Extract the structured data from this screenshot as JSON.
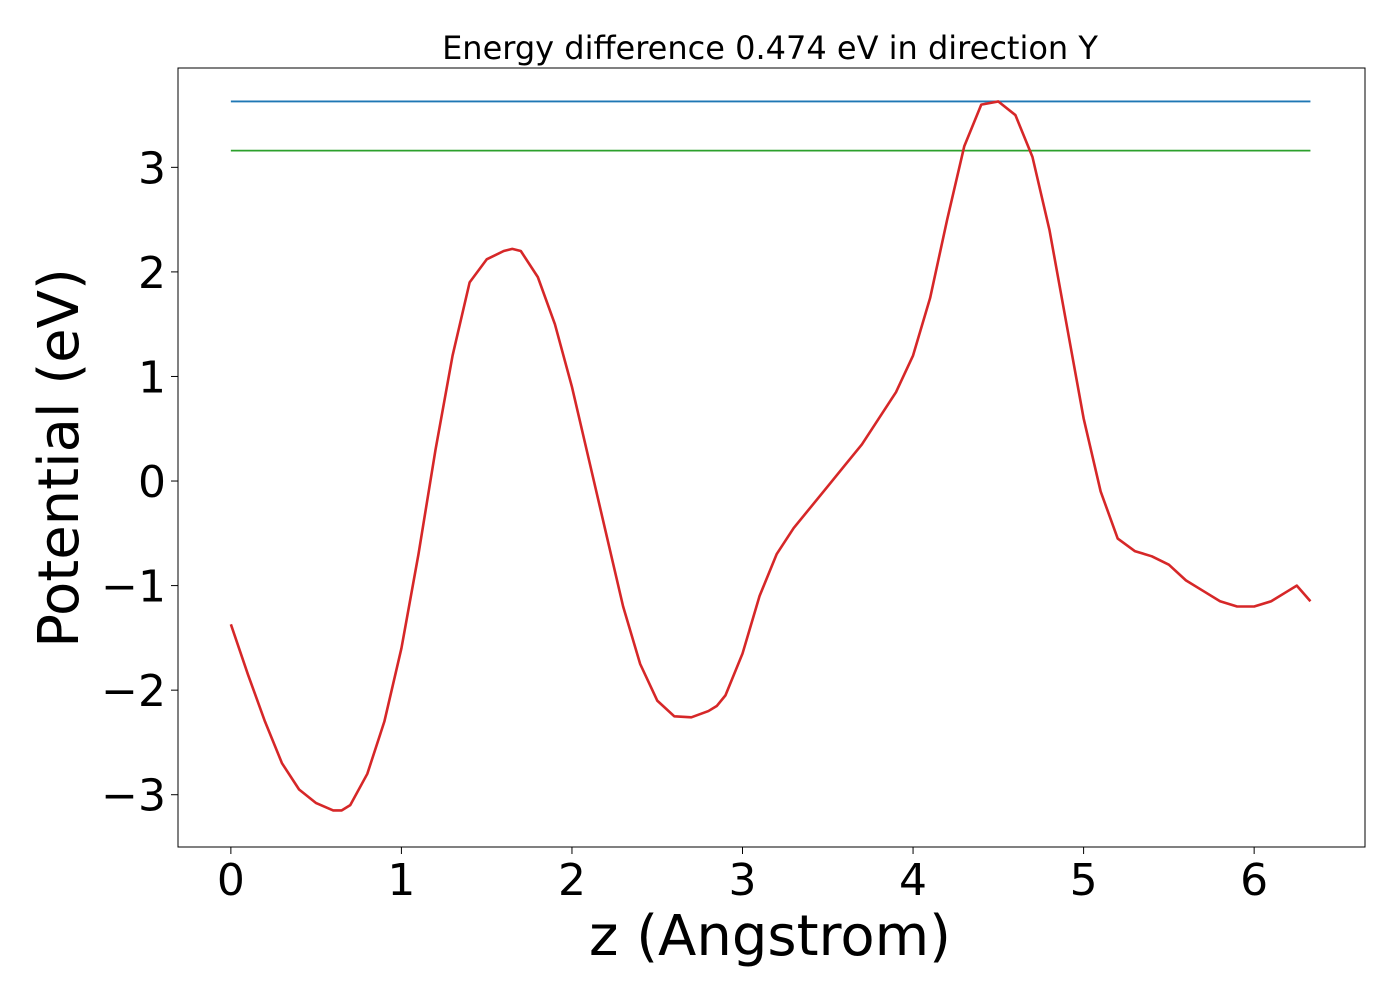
{
  "chart_data": {
    "type": "line",
    "title": "Energy difference 0.474 eV in direction Y",
    "xlabel": "z (Angstrom)",
    "ylabel": "Potential (eV)",
    "xlim": [
      -0.31,
      6.65
    ],
    "ylim": [
      -3.5,
      3.95
    ],
    "xticks": [
      0,
      1,
      2,
      3,
      4,
      5,
      6
    ],
    "xtick_labels": [
      "0",
      "1",
      "2",
      "3",
      "4",
      "5",
      "6"
    ],
    "yticks": [
      -3,
      -2,
      -1,
      0,
      1,
      2,
      3
    ],
    "ytick_labels": [
      "−3",
      "−2",
      "−1",
      "0",
      "1",
      "2",
      "3"
    ],
    "grid": false,
    "series": [
      {
        "color": "#d62728",
        "x": [
          0,
          0.1,
          0.2,
          0.3,
          0.4,
          0.5,
          0.6,
          0.65,
          0.7,
          0.8,
          0.9,
          1.0,
          1.1,
          1.2,
          1.3,
          1.4,
          1.5,
          1.6,
          1.65,
          1.7,
          1.8,
          1.9,
          2.0,
          2.1,
          2.2,
          2.3,
          2.4,
          2.5,
          2.6,
          2.7,
          2.8,
          2.85,
          2.9,
          3.0,
          3.1,
          3.2,
          3.3,
          3.4,
          3.5,
          3.6,
          3.7,
          3.8,
          3.9,
          4.0,
          4.1,
          4.2,
          4.3,
          4.4,
          4.5,
          4.6,
          4.7,
          4.8,
          4.9,
          5.0,
          5.1,
          5.2,
          5.3,
          5.4,
          5.5,
          5.6,
          5.7,
          5.8,
          5.9,
          6.0,
          6.1,
          6.2,
          6.25,
          6.33
        ],
        "y": [
          -1.37,
          -1.85,
          -2.3,
          -2.7,
          -2.95,
          -3.08,
          -3.15,
          -3.15,
          -3.1,
          -2.8,
          -2.3,
          -1.6,
          -0.7,
          0.3,
          1.2,
          1.9,
          2.12,
          2.2,
          2.22,
          2.2,
          1.95,
          1.5,
          0.9,
          0.2,
          -0.5,
          -1.2,
          -1.75,
          -2.1,
          -2.25,
          -2.26,
          -2.2,
          -2.15,
          -2.05,
          -1.65,
          -1.1,
          -0.7,
          -0.45,
          -0.25,
          -0.05,
          0.15,
          0.35,
          0.6,
          0.85,
          1.2,
          1.75,
          2.5,
          3.2,
          3.6,
          3.63,
          3.5,
          3.1,
          2.4,
          1.5,
          0.6,
          -0.1,
          -0.55,
          -0.67,
          -0.72,
          -0.8,
          -0.95,
          -1.05,
          -1.15,
          -1.2,
          -1.2,
          -1.15,
          -1.05,
          -1.0,
          -1.15
        ]
      },
      {
        "color": "#1f77b4",
        "x": [
          0,
          6.33
        ],
        "y": [
          3.63,
          3.63
        ]
      },
      {
        "color": "#2ca02c",
        "x": [
          0,
          6.33
        ],
        "y": [
          3.16,
          3.16
        ]
      }
    ]
  }
}
